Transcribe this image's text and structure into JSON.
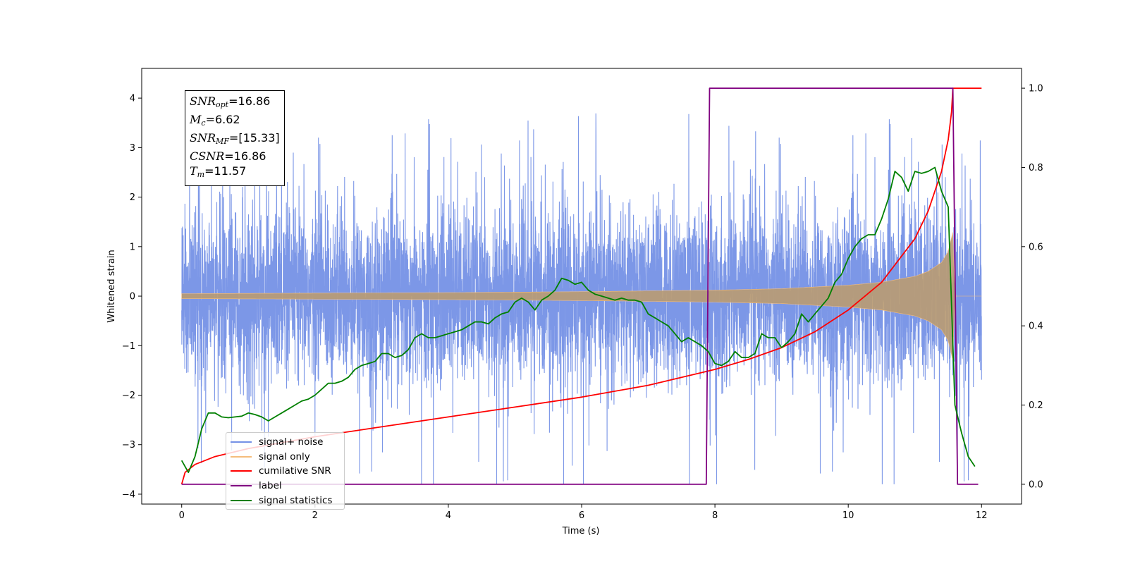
{
  "chart_data": {
    "type": "line",
    "title": "",
    "xlabel": "Time (s)",
    "ylabel": "Whitened strain",
    "xlim": [
      -0.6,
      12.6
    ],
    "ylim": [
      -4.2,
      4.6
    ],
    "y2lim": [
      -0.05,
      1.05
    ],
    "x_ticks": [
      0,
      2,
      4,
      6,
      8,
      10,
      12
    ],
    "x_tick_labels": [
      "0",
      "2",
      "4",
      "6",
      "8",
      "10",
      "12"
    ],
    "y_ticks": [
      4,
      3,
      2,
      1,
      0,
      -1,
      -2,
      -3,
      -4
    ],
    "y_tick_labels": [
      "4",
      "3",
      "2",
      "1",
      "0",
      "−1",
      "−2",
      "−3",
      "−4"
    ],
    "y2_ticks": [
      1.0,
      0.8,
      0.6,
      0.4,
      0.2,
      0.0
    ],
    "y2_tick_labels": [
      "1.0",
      "0.8",
      "0.6",
      "0.4",
      "0.2",
      "0.0"
    ],
    "grid": false,
    "legend_position": "lower-left",
    "series": [
      {
        "name": "signal+ noise",
        "axis": "left",
        "color": "#7591e6",
        "description_range": [
          0,
          12
        ],
        "envelope_core": 1.25,
        "spike_max": 4.2,
        "spike_min": -3.8
      },
      {
        "name": "signal only",
        "axis": "left",
        "color": "#f5bd7c",
        "amplitude_x": [
          0,
          2,
          4,
          6,
          8,
          9,
          10,
          10.5,
          11,
          11.2,
          11.4,
          11.5,
          11.57,
          11.6,
          12
        ],
        "amplitude_y": [
          0.05,
          0.06,
          0.07,
          0.09,
          0.12,
          0.15,
          0.22,
          0.28,
          0.4,
          0.5,
          0.68,
          0.9,
          1.3,
          0.0,
          0.0
        ]
      },
      {
        "name": "cumilative SNR",
        "axis": "right",
        "color": "#ff0000",
        "x": [
          0,
          0.05,
          0.2,
          0.5,
          1,
          2,
          3,
          4,
          5,
          6,
          7,
          8,
          8.5,
          9,
          9.5,
          10,
          10.5,
          11,
          11.2,
          11.4,
          11.5,
          11.55,
          11.57,
          12
        ],
        "y": [
          0.0,
          0.03,
          0.05,
          0.07,
          0.09,
          0.12,
          0.145,
          0.17,
          0.195,
          0.22,
          0.25,
          0.29,
          0.315,
          0.345,
          0.385,
          0.44,
          0.51,
          0.62,
          0.69,
          0.79,
          0.87,
          0.94,
          1.0,
          1.0
        ]
      },
      {
        "name": "label",
        "axis": "right",
        "color": "#800080",
        "x": [
          0,
          7.87,
          7.92,
          11.57,
          11.64,
          11.95
        ],
        "y": [
          0,
          0,
          1,
          1,
          0,
          0
        ]
      },
      {
        "name": "signal statistics",
        "axis": "right",
        "color": "#008000",
        "x": [
          0,
          0.1,
          0.2,
          0.3,
          0.4,
          0.5,
          0.6,
          0.7,
          0.8,
          0.9,
          1.0,
          1.1,
          1.2,
          1.3,
          1.4,
          1.5,
          1.6,
          1.7,
          1.8,
          1.9,
          2.0,
          2.1,
          2.2,
          2.3,
          2.4,
          2.5,
          2.6,
          2.7,
          2.8,
          2.9,
          3.0,
          3.1,
          3.2,
          3.3,
          3.4,
          3.5,
          3.6,
          3.7,
          3.8,
          3.9,
          4.0,
          4.1,
          4.2,
          4.3,
          4.4,
          4.5,
          4.6,
          4.7,
          4.8,
          4.9,
          5.0,
          5.1,
          5.2,
          5.3,
          5.4,
          5.5,
          5.6,
          5.7,
          5.8,
          5.9,
          6.0,
          6.1,
          6.2,
          6.3,
          6.4,
          6.5,
          6.6,
          6.7,
          6.8,
          6.9,
          7.0,
          7.1,
          7.2,
          7.3,
          7.4,
          7.5,
          7.6,
          7.7,
          7.8,
          7.9,
          8.0,
          8.1,
          8.2,
          8.3,
          8.4,
          8.5,
          8.6,
          8.7,
          8.8,
          8.9,
          9.0,
          9.1,
          9.2,
          9.3,
          9.4,
          9.5,
          9.6,
          9.7,
          9.8,
          9.9,
          10.0,
          10.1,
          10.2,
          10.3,
          10.4,
          10.5,
          10.6,
          10.7,
          10.8,
          10.9,
          11.0,
          11.1,
          11.2,
          11.3,
          11.4,
          11.5,
          11.6,
          11.7,
          11.8,
          11.9
        ],
        "y": [
          0.06,
          0.03,
          0.07,
          0.14,
          0.18,
          0.18,
          0.17,
          0.168,
          0.17,
          0.172,
          0.18,
          0.176,
          0.17,
          0.16,
          0.17,
          0.18,
          0.19,
          0.2,
          0.21,
          0.215,
          0.225,
          0.24,
          0.255,
          0.255,
          0.26,
          0.27,
          0.29,
          0.3,
          0.305,
          0.31,
          0.33,
          0.33,
          0.32,
          0.325,
          0.34,
          0.37,
          0.38,
          0.37,
          0.37,
          0.375,
          0.38,
          0.385,
          0.39,
          0.4,
          0.41,
          0.41,
          0.405,
          0.42,
          0.43,
          0.435,
          0.46,
          0.47,
          0.46,
          0.44,
          0.465,
          0.475,
          0.49,
          0.52,
          0.515,
          0.505,
          0.51,
          0.49,
          0.48,
          0.475,
          0.47,
          0.465,
          0.47,
          0.465,
          0.465,
          0.46,
          0.43,
          0.42,
          0.41,
          0.4,
          0.38,
          0.36,
          0.37,
          0.36,
          0.35,
          0.335,
          0.305,
          0.3,
          0.31,
          0.335,
          0.32,
          0.32,
          0.33,
          0.38,
          0.37,
          0.37,
          0.345,
          0.36,
          0.38,
          0.43,
          0.41,
          0.43,
          0.45,
          0.47,
          0.51,
          0.53,
          0.57,
          0.6,
          0.62,
          0.63,
          0.63,
          0.67,
          0.72,
          0.79,
          0.775,
          0.74,
          0.79,
          0.785,
          0.79,
          0.8,
          0.74,
          0.7,
          0.2,
          0.13,
          0.07,
          0.045
        ]
      }
    ]
  },
  "stats": {
    "snr_opt": {
      "base": "SNR",
      "sub": "opt",
      "value": "=16.86"
    },
    "mc": {
      "base": "M",
      "sub": "c",
      "value": "=6.62"
    },
    "snr_mf": {
      "base": "SNR",
      "sub": "MF",
      "value": "=[15.33]"
    },
    "csnr": {
      "base": "CSNR",
      "value": "=16.86"
    },
    "tm": {
      "base": "T",
      "sub": "m",
      "value": "=11.57"
    }
  },
  "legend": {
    "items": [
      {
        "label": "signal+ noise",
        "color": "#7591e6"
      },
      {
        "label": "signal only",
        "color": "#f5bd7c"
      },
      {
        "label": "cumilative SNR",
        "color": "#ff0000"
      },
      {
        "label": "label",
        "color": "#800080"
      },
      {
        "label": "signal statistics",
        "color": "#008000"
      }
    ]
  }
}
